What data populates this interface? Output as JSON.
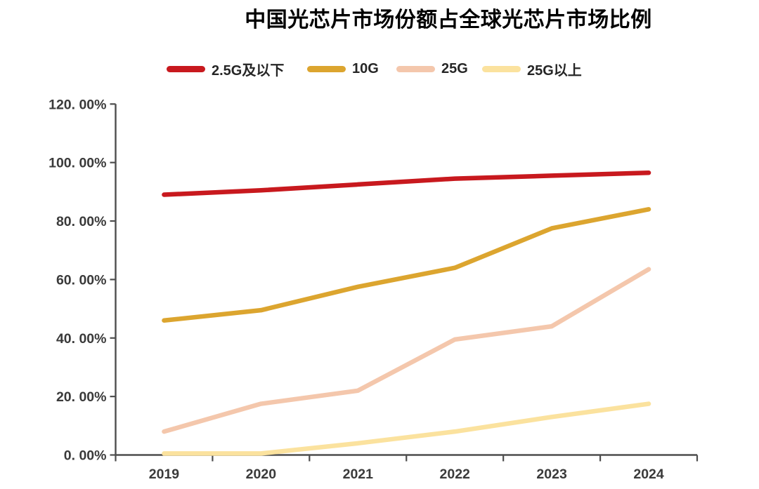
{
  "title": "中国光芯片市场份额占全球光芯片市场比例",
  "colors": {
    "series_red": "#C8191E",
    "series_gold": "#DCA52F",
    "series_pink": "#F4C7AC",
    "series_lightyellow": "#FBE29E",
    "axis": "#4D4D4D",
    "tick_text": "#3A3A3A",
    "title_text": "#000000",
    "background": "#FFFFFF"
  },
  "chart_data": {
    "type": "line",
    "title": "中国光芯片市场份额占全球光芯片市场比例",
    "categories": [
      "2019",
      "2020",
      "2021",
      "2022",
      "2023",
      "2024"
    ],
    "series": [
      {
        "name": "2.5G及以下",
        "color": "#C8191E",
        "values": [
          89.0,
          90.5,
          92.5,
          94.5,
          95.5,
          96.5
        ]
      },
      {
        "name": "10G",
        "color": "#DCA52F",
        "values": [
          46.0,
          49.5,
          57.5,
          64.0,
          77.5,
          84.0
        ]
      },
      {
        "name": "25G",
        "color": "#F4C7AC",
        "values": [
          8.0,
          17.5,
          22.0,
          39.5,
          44.0,
          63.5
        ]
      },
      {
        "name": "25G以上",
        "color": "#FBE29E",
        "values": [
          0.5,
          0.5,
          4.0,
          8.0,
          13.0,
          17.5
        ]
      }
    ],
    "xlabel": "",
    "ylabel": "",
    "ylim": [
      0,
      120
    ],
    "ytick_step": 20,
    "ytick_labels": [
      "0. 00%",
      "20. 00%",
      "40. 00%",
      "60. 00%",
      "80. 00%",
      "100. 00%",
      "120. 00%"
    ],
    "grid": false,
    "legend_position": "top"
  }
}
